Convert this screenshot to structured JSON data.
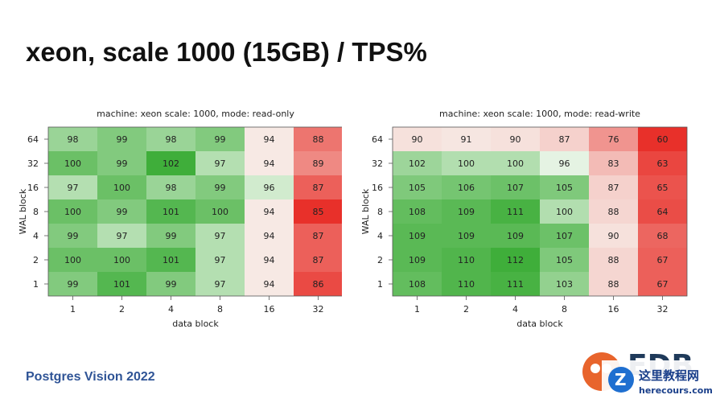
{
  "slide": {
    "title": "xeon, scale 1000 (15GB) / TPS%",
    "footer": "Postgres Vision 2022",
    "logo_text": "EDB",
    "watermark_main": "这里教程网",
    "watermark_sub": "herecours.com"
  },
  "colors": {
    "low": "#e8302a",
    "mid": "#f8fbf6",
    "high": "#3fae3a"
  },
  "chart_data": [
    {
      "type": "heatmap",
      "title": "machine: xeon scale: 1000, mode: read-only",
      "xlabel": "data block",
      "ylabel": "WAL block",
      "x_categories": [
        "1",
        "2",
        "4",
        "8",
        "16",
        "32"
      ],
      "y_categories": [
        "64",
        "32",
        "16",
        "8",
        "4",
        "2",
        "1"
      ],
      "values": [
        [
          98,
          99,
          98,
          99,
          94,
          88
        ],
        [
          100,
          99,
          102,
          97,
          94,
          89
        ],
        [
          97,
          100,
          98,
          99,
          96,
          87
        ],
        [
          100,
          99,
          101,
          100,
          94,
          85
        ],
        [
          99,
          97,
          99,
          97,
          94,
          87
        ],
        [
          100,
          100,
          101,
          97,
          94,
          87
        ],
        [
          99,
          101,
          99,
          97,
          94,
          86
        ]
      ]
    },
    {
      "type": "heatmap",
      "title": "machine: xeon scale: 1000, mode: read-write",
      "xlabel": "data block",
      "ylabel": "WAL block",
      "x_categories": [
        "1",
        "2",
        "4",
        "8",
        "16",
        "32"
      ],
      "y_categories": [
        "64",
        "32",
        "16",
        "8",
        "4",
        "2",
        "1"
      ],
      "values": [
        [
          90,
          91,
          90,
          87,
          76,
          60
        ],
        [
          102,
          100,
          100,
          96,
          83,
          63
        ],
        [
          105,
          106,
          107,
          105,
          87,
          65
        ],
        [
          108,
          109,
          111,
          100,
          88,
          64
        ],
        [
          109,
          109,
          109,
          107,
          90,
          68
        ],
        [
          109,
          110,
          112,
          105,
          88,
          67
        ],
        [
          108,
          110,
          111,
          103,
          88,
          67
        ]
      ]
    }
  ]
}
